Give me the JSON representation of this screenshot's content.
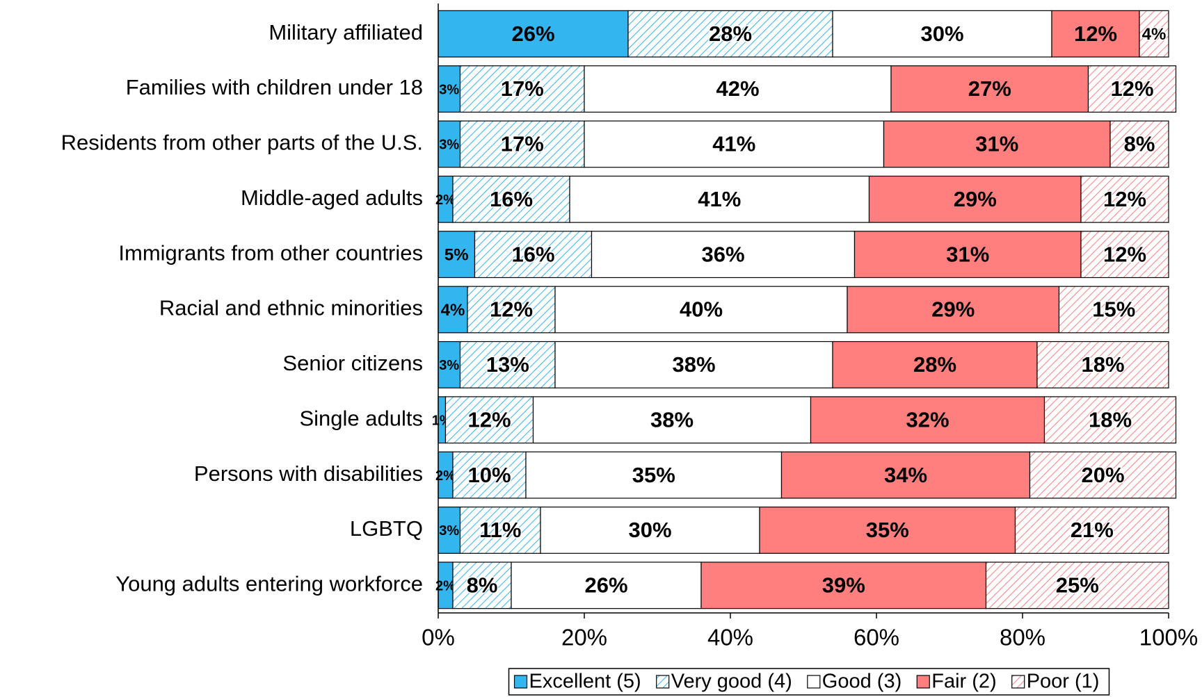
{
  "chart_data": {
    "type": "stacked_bar_horizontal",
    "categories": [
      "Military affiliated",
      "Families with children under 18",
      "Residents from other parts of the U.S.",
      "Middle-aged adults",
      "Immigrants from other countries",
      "Racial and ethnic minorities",
      "Senior citizens",
      "Single adults",
      "Persons with disabilities",
      "LGBTQ",
      "Young adults entering workforce"
    ],
    "series": [
      {
        "name": "Excellent (5)",
        "color": "#33b5f0",
        "hatch": false,
        "values": [
          26,
          3,
          3,
          2,
          5,
          4,
          3,
          1,
          2,
          3,
          2
        ],
        "value_labels": [
          "26%",
          "3%",
          "3%",
          "2%",
          "5%",
          "4%",
          "3%",
          "1%",
          "2%",
          "3%",
          "2%"
        ]
      },
      {
        "name": "Very good (4)",
        "color": "#33b5f0",
        "hatch": true,
        "values": [
          28,
          17,
          17,
          16,
          16,
          12,
          13,
          12,
          10,
          11,
          8
        ],
        "value_labels": [
          "28%",
          "17%",
          "17%",
          "16%",
          "16%",
          "12%",
          "13%",
          "12%",
          "10%",
          "11%",
          "8%"
        ]
      },
      {
        "name": "Good (3)",
        "color": "#ffffff",
        "hatch": false,
        "values": [
          30,
          42,
          41,
          41,
          36,
          40,
          38,
          38,
          35,
          30,
          26
        ],
        "value_labels": [
          "30%",
          "42%",
          "41%",
          "41%",
          "36%",
          "40%",
          "38%",
          "38%",
          "35%",
          "30%",
          "26%"
        ]
      },
      {
        "name": "Fair (2)",
        "color": "#ff7f7f",
        "hatch": false,
        "values": [
          12,
          27,
          31,
          29,
          31,
          29,
          28,
          32,
          34,
          35,
          39
        ],
        "value_labels": [
          "12%",
          "27%",
          "31%",
          "29%",
          "31%",
          "29%",
          "28%",
          "32%",
          "34%",
          "35%",
          "39%"
        ]
      },
      {
        "name": "Poor (1)",
        "color": "#ff7f7f",
        "hatch": true,
        "values": [
          4,
          12,
          8,
          12,
          12,
          15,
          18,
          18,
          20,
          21,
          25
        ],
        "value_labels": [
          "4%",
          "12%",
          "8%",
          "12%",
          "12%",
          "15%",
          "18%",
          "18%",
          "20%",
          "21%",
          "25%"
        ]
      }
    ],
    "xlim": [
      0,
      100
    ],
    "xticks": [
      {
        "value": 0,
        "label": "0%"
      },
      {
        "value": 20,
        "label": "20%"
      },
      {
        "value": 40,
        "label": "40%"
      },
      {
        "value": 60,
        "label": "60%"
      },
      {
        "value": 80,
        "label": "80%"
      },
      {
        "value": 100,
        "label": "100%"
      }
    ],
    "legend": "bottom"
  }
}
